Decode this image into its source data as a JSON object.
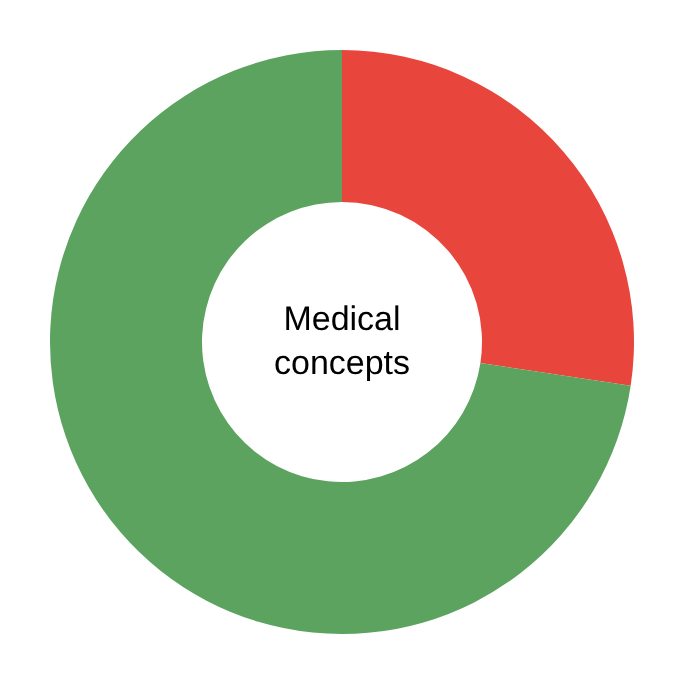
{
  "chart_data": {
    "type": "donut",
    "categories": [
      null,
      null
    ],
    "values": [
      27.4,
      72.6
    ],
    "colors": [
      "#e8453c",
      "#5ba35f"
    ],
    "legend": false,
    "annotations": [
      "Medical concepts"
    ]
  }
}
